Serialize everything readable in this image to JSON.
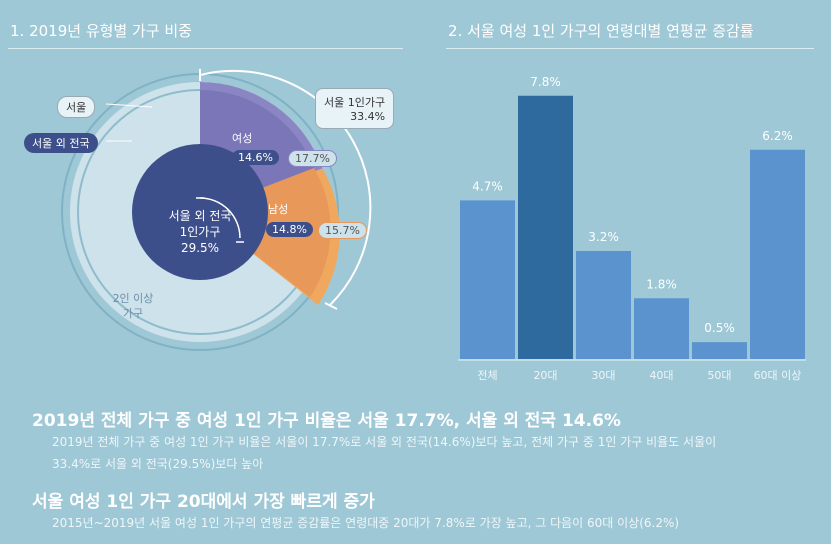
{
  "left": {
    "title": "1. 2019년 유형별 가구 비중",
    "legend_seoul": "서울",
    "legend_outside": "서울 외 전국",
    "callout_title": "서울 1인가구",
    "callout_value": "33.4%",
    "female_label": "여성",
    "female_outside": "14.6%",
    "female_seoul": "17.7%",
    "male_label": "남성",
    "male_outside": "14.8%",
    "male_seoul": "15.7%",
    "center_line1": "서울 외 전국",
    "center_line2": "1인가구",
    "center_value": "29.5%",
    "two_plus_line1": "2인 이상",
    "two_plus_line2": "가구"
  },
  "right": {
    "title": "2. 서울 여성 1인 가구의 연령대별 연평균 증감률"
  },
  "chart_data": [
    {
      "type": "pie",
      "title": "1. 2019년 유형별 가구 비중",
      "series": [
        {
          "name": "서울",
          "slices": [
            {
              "label": "여성 1인가구",
              "value": 17.7
            },
            {
              "label": "남성 1인가구",
              "value": 15.7
            },
            {
              "label": "2인 이상 가구",
              "value": 66.6
            }
          ]
        },
        {
          "name": "서울 외 전국",
          "slices": [
            {
              "label": "여성 1인가구",
              "value": 14.6
            },
            {
              "label": "남성 1인가구",
              "value": 14.8
            },
            {
              "label": "2인 이상 가구",
              "value": 70.6
            }
          ]
        }
      ],
      "annotations": {
        "seoul_single_total": 33.4,
        "outside_single_total": 29.5
      }
    },
    {
      "type": "bar",
      "title": "2. 서울 여성 1인 가구의 연령대별 연평균 증감률",
      "categories": [
        "전체",
        "20대",
        "30대",
        "40대",
        "50대",
        "60대 이상"
      ],
      "values": [
        4.7,
        7.8,
        3.2,
        1.8,
        0.5,
        6.2
      ],
      "value_labels": [
        "4.7%",
        "7.8%",
        "3.2%",
        "1.8%",
        "0.5%",
        "6.2%"
      ],
      "ylim": [
        0,
        8
      ],
      "colors": [
        "#5b93cf",
        "#2f6a9e",
        "#5b93cf",
        "#5b93cf",
        "#5b93cf",
        "#5b93cf"
      ]
    }
  ],
  "text": {
    "headline1": "2019년 전체 가구 중 여성 1인 가구 비율은 서울 17.7%, 서울 외 전국 14.6%",
    "body1_line1": "2019년 전체 가구 중 여성 1인 가구 비율은 서울이 17.7%로 서울 외 전국(14.6%)보다 높고, 전체 가구 중 1인 가구 비율도 서울이",
    "body1_line2": "33.4%로 서울 외 전국(29.5%)보다 높아",
    "headline2": "서울 여성 1인 가구 20대에서 가장 빠르게 증가",
    "body2_line1": "2015년~2019년 서울 여성 1인 가구의 연평균 증감률은 연령대중 20대가 7.8%로 가장 높고, 그 다음이 60대 이상(6.2%)"
  }
}
